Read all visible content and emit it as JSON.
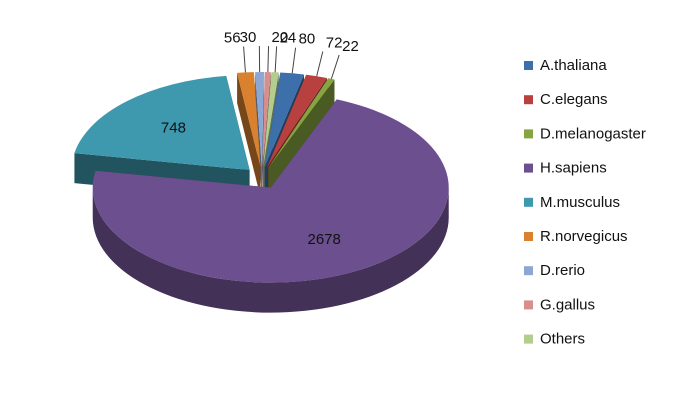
{
  "chart_data": {
    "type": "pie",
    "style": "3d-exploded",
    "title": "",
    "legend_position": "right",
    "categories": [
      "A.thaliana",
      "C.elegans",
      "D.melanogaster",
      "H.sapiens",
      "M.musculus",
      "R.norvegicus",
      "D.rerio",
      "G.gallus",
      "Others"
    ],
    "values": [
      80,
      72,
      22,
      2678,
      748,
      56,
      30,
      20,
      24
    ],
    "colors": [
      "#3d6faa",
      "#b8413f",
      "#86a43f",
      "#6c4f8e",
      "#3e98ae",
      "#d9812e",
      "#8ca7d3",
      "#d68f8d",
      "#b3cd8f"
    ],
    "labels": [
      "80",
      "72",
      "22",
      "2678",
      "748",
      "56",
      "30",
      "20",
      "24"
    ]
  }
}
